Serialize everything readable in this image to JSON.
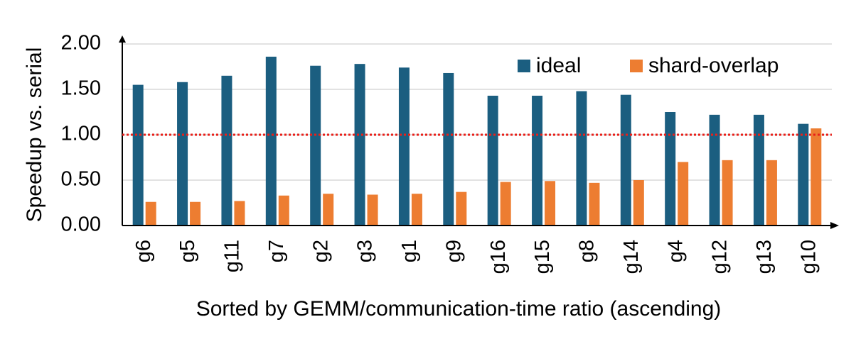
{
  "chart_data": {
    "type": "bar",
    "y_label": "Speedup vs. serial",
    "x_label": "Sorted by GEMM/communication-time ratio (ascending)",
    "categories": [
      "g6",
      "g5",
      "g11",
      "g7",
      "g2",
      "g3",
      "g1",
      "g9",
      "g16",
      "g15",
      "g8",
      "g14",
      "g4",
      "g12",
      "g13",
      "g10"
    ],
    "series": [
      {
        "name": "ideal",
        "color": "#1b5e80",
        "values": [
          1.55,
          1.58,
          1.65,
          1.86,
          1.76,
          1.78,
          1.74,
          1.68,
          1.43,
          1.43,
          1.48,
          1.44,
          1.25,
          1.22,
          1.22,
          1.12
        ]
      },
      {
        "name": "shard-overlap",
        "color": "#ed7d31",
        "values": [
          0.26,
          0.26,
          0.27,
          0.33,
          0.35,
          0.34,
          0.35,
          0.37,
          0.48,
          0.49,
          0.47,
          0.5,
          0.7,
          0.72,
          0.72,
          1.07
        ]
      }
    ],
    "ylim": [
      0,
      2
    ],
    "yticks": [
      {
        "value": 0,
        "label": "0.00"
      },
      {
        "value": 0.5,
        "label": "0.50"
      },
      {
        "value": 1,
        "label": "1.00"
      },
      {
        "value": 1.5,
        "label": "1.50"
      },
      {
        "value": 2,
        "label": "2.00"
      }
    ],
    "grid": true,
    "reference_line": {
      "value": 1,
      "color": "#e8201a"
    },
    "legend": "top-right"
  }
}
